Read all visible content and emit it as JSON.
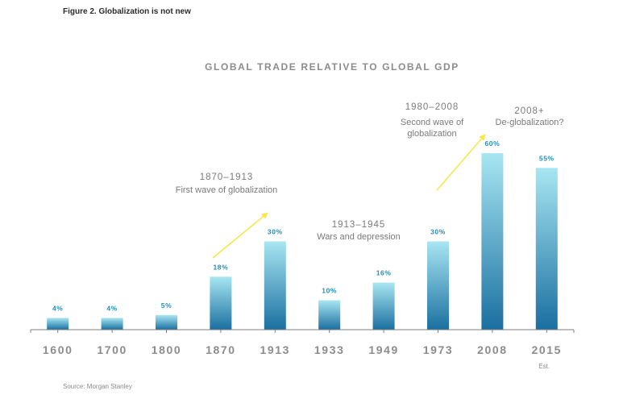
{
  "figure_title": "Figure 2. Globalization is not new",
  "source": "Source: Morgan Stanley",
  "colors": {
    "bar_top": "#a8e6f2",
    "bar_bottom": "#1a6fa0",
    "arrow": "#f5e84a",
    "axis": "#7f7f7f"
  },
  "chart_data": {
    "type": "bar",
    "title": "GLOBAL TRADE RELATIVE TO GLOBAL GDP",
    "xlabel": "",
    "ylabel": "",
    "ylim": [
      0,
      60
    ],
    "grid": false,
    "categories": [
      "1600",
      "1700",
      "1800",
      "1870",
      "1913",
      "1933",
      "1949",
      "1973",
      "2008",
      "2015"
    ],
    "values": [
      4,
      4,
      5,
      18,
      30,
      10,
      16,
      30,
      60,
      55
    ],
    "value_labels": [
      "4%",
      "4%",
      "5%",
      "18%",
      "30%",
      "10%",
      "16%",
      "30%",
      "60%",
      "55%"
    ],
    "tick_note": {
      "category": "2015",
      "text": "Est."
    },
    "annotations": [
      {
        "period": "1870–1913",
        "lines": [
          "First wave of globalization"
        ]
      },
      {
        "period": "1913–1945",
        "lines": [
          "Wars and depression"
        ]
      },
      {
        "period": "1980–2008",
        "lines": [
          "Second wave of",
          "globalization"
        ]
      },
      {
        "period": "2008+",
        "lines": [
          "De-globalization?"
        ]
      }
    ],
    "arrows": [
      {
        "from_category": "1870",
        "to_category": "1913"
      },
      {
        "from_category": "1973",
        "to_category": "2008"
      }
    ]
  }
}
